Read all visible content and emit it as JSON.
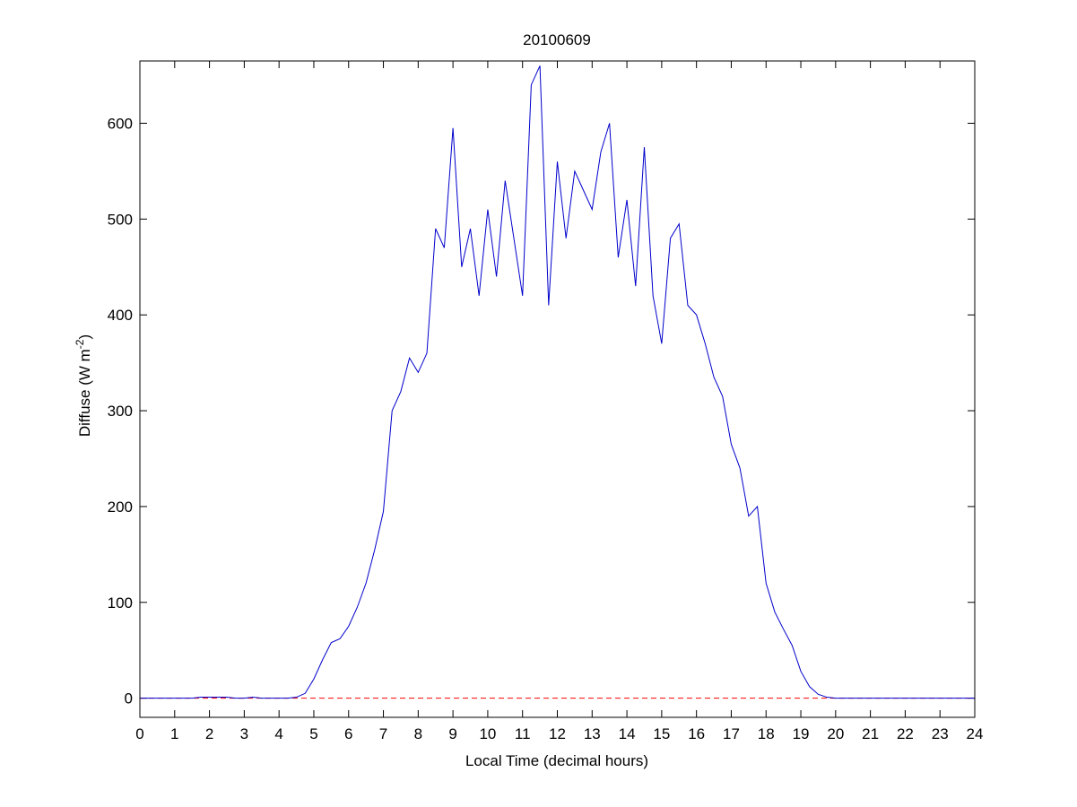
{
  "chart_data": {
    "type": "line",
    "title": "20100609",
    "xlabel": "Local Time (decimal hours)",
    "ylabel": {
      "text": "Diffuse (W m",
      "superscript": "-2",
      "suffix": ")"
    },
    "x": [
      0,
      0.25,
      0.5,
      0.75,
      1,
      1.25,
      1.5,
      1.75,
      2,
      2.25,
      2.5,
      2.75,
      3,
      3.25,
      3.5,
      3.75,
      4,
      4.25,
      4.5,
      4.75,
      5,
      5.25,
      5.5,
      5.75,
      6,
      6.25,
      6.5,
      6.75,
      7,
      7.25,
      7.5,
      7.75,
      8,
      8.25,
      8.5,
      8.75,
      9,
      9.25,
      9.5,
      9.75,
      10,
      10.25,
      10.5,
      10.75,
      11,
      11.25,
      11.5,
      11.75,
      12,
      12.25,
      12.5,
      12.75,
      13,
      13.25,
      13.5,
      13.75,
      14,
      14.25,
      14.5,
      14.75,
      15,
      15.25,
      15.5,
      15.75,
      16,
      16.25,
      16.5,
      16.75,
      17,
      17.25,
      17.5,
      17.75,
      18,
      18.25,
      18.5,
      18.75,
      19,
      19.25,
      19.5,
      19.75,
      20,
      20.25,
      20.5,
      20.75,
      21,
      21.25,
      21.5,
      21.75,
      22,
      22.25,
      22.5,
      22.75,
      23,
      23.25,
      23.5,
      23.75,
      24
    ],
    "series": [
      {
        "color": "#0000cc",
        "values": [
          0,
          0,
          0,
          0,
          0,
          0,
          0,
          1,
          1,
          1,
          1,
          0,
          0,
          1,
          0,
          0,
          0,
          0,
          1,
          5,
          20,
          40,
          58,
          62,
          75,
          95,
          120,
          155,
          195,
          300,
          320,
          355,
          340,
          360,
          490,
          470,
          595,
          450,
          490,
          420,
          510,
          440,
          540,
          480,
          420,
          640,
          660,
          410,
          560,
          480,
          550,
          530,
          510,
          570,
          600,
          460,
          520,
          430,
          575,
          420,
          370,
          480,
          495,
          410,
          400,
          370,
          335,
          315,
          265,
          240,
          190,
          200,
          120,
          90,
          72,
          55,
          28,
          12,
          4,
          1,
          0,
          0,
          0,
          0,
          0,
          0,
          0,
          0,
          0,
          0,
          0,
          0,
          0,
          0,
          0,
          0,
          0
        ]
      }
    ],
    "reference_lines": [
      {
        "y": 0,
        "color": "#ff0000"
      }
    ],
    "xlim": [
      0,
      24
    ],
    "xticks": [
      0,
      1,
      2,
      3,
      4,
      5,
      6,
      7,
      8,
      9,
      10,
      11,
      12,
      13,
      14,
      15,
      16,
      17,
      18,
      19,
      20,
      21,
      22,
      23,
      24
    ],
    "ylim": [
      -20,
      665
    ],
    "yticks": [
      0,
      100,
      200,
      300,
      400,
      500,
      600
    ]
  }
}
